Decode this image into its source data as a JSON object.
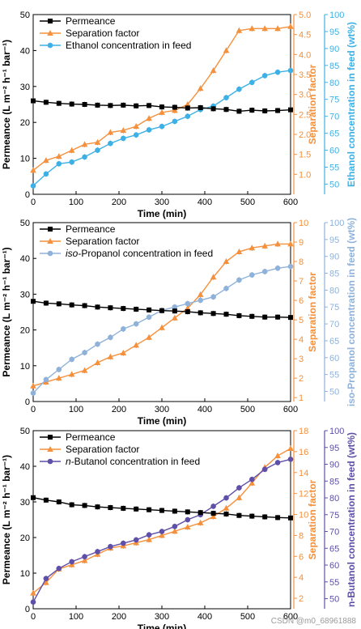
{
  "colors": {
    "permeance": "#000000",
    "separation": "#f5903c",
    "ethanol": "#3db1e6",
    "isopropanol": "#8fb2da",
    "butanol": "#5f4fa8"
  },
  "watermark": "CSDN @m0_68961888",
  "chart_data": [
    {
      "type": "line",
      "xlabel": "Time (min)",
      "xticks": [
        "0",
        "100",
        "200",
        "300",
        "400",
        "500",
        "600"
      ],
      "xlim": [
        0,
        600
      ],
      "y_left": {
        "label": "Permeance (L m⁻² h⁻¹ bar⁻¹)",
        "ylim": [
          0,
          50
        ],
        "ticks": [
          "0",
          "10",
          "20",
          "30",
          "40",
          "50"
        ]
      },
      "y_mid": {
        "label": "Separation factor",
        "ylim": [
          0.5,
          5.0
        ],
        "ticks": [
          "1.0",
          "1.5",
          "2.0",
          "2.5",
          "3.0",
          "3.5",
          "4.0",
          "4.5",
          "5.0"
        ]
      },
      "y_right": {
        "label": "Ethanol concentration in feed (wt%)",
        "ylim": [
          47,
          100
        ],
        "ticks": [
          "50",
          "55",
          "60",
          "65",
          "70",
          "75",
          "80",
          "85",
          "90",
          "95",
          "100"
        ]
      },
      "legend_position": "top-left",
      "series": [
        {
          "name": "Permeance",
          "axis": "left",
          "marker": "square",
          "color_key": "permeance",
          "x": [
            0,
            30,
            60,
            90,
            120,
            150,
            180,
            210,
            240,
            270,
            300,
            330,
            360,
            390,
            420,
            450,
            480,
            510,
            540,
            570,
            600
          ],
          "y": [
            26.0,
            25.6,
            25.3,
            25.1,
            25.0,
            24.8,
            24.7,
            24.8,
            24.6,
            24.7,
            24.3,
            24.2,
            24.0,
            24.1,
            23.8,
            23.6,
            23.1,
            23.4,
            23.2,
            23.3,
            23.5
          ]
        },
        {
          "name": "Separation factor",
          "axis": "mid",
          "marker": "triangle",
          "color_key": "separation",
          "x": [
            0,
            30,
            60,
            90,
            120,
            150,
            180,
            210,
            240,
            270,
            300,
            330,
            360,
            390,
            420,
            450,
            480,
            510,
            540,
            570,
            600
          ],
          "y": [
            1.1,
            1.35,
            1.45,
            1.6,
            1.75,
            1.8,
            2.05,
            2.1,
            2.2,
            2.4,
            2.55,
            2.6,
            2.75,
            3.15,
            3.6,
            4.1,
            4.6,
            4.65,
            4.65,
            4.65,
            4.7
          ]
        },
        {
          "name": "Ethanol concentration in feed",
          "axis": "right",
          "marker": "circle",
          "color_key": "ethanol",
          "x": [
            0,
            30,
            60,
            90,
            120,
            150,
            180,
            210,
            240,
            270,
            300,
            330,
            360,
            390,
            420,
            450,
            480,
            510,
            540,
            570,
            600
          ],
          "y": [
            49.5,
            53,
            56,
            56.5,
            58,
            60,
            62,
            63.5,
            64.5,
            66,
            67,
            68.5,
            70,
            72,
            73,
            75.5,
            78,
            80,
            82,
            83,
            83.5
          ]
        }
      ]
    },
    {
      "type": "line",
      "xlabel": "Time (min)",
      "xticks": [
        "0",
        "100",
        "200",
        "300",
        "400",
        "500",
        "600"
      ],
      "xlim": [
        0,
        600
      ],
      "y_left": {
        "label": "Permeance (L m⁻² h⁻¹ bar⁻¹)",
        "ylim": [
          0,
          50
        ],
        "ticks": [
          "0",
          "10",
          "20",
          "30",
          "40",
          "50"
        ]
      },
      "y_mid": {
        "label": "Separation factor",
        "ylim": [
          0.8,
          10
        ],
        "ticks": [
          "1",
          "2",
          "3",
          "4",
          "5",
          "6",
          "7",
          "8",
          "9",
          "10"
        ]
      },
      "y_right": {
        "label": "iso-Propanol concentration in feed (wt%)",
        "ylim": [
          47,
          100
        ],
        "ticks": [
          "50",
          "55",
          "60",
          "65",
          "70",
          "75",
          "80",
          "85",
          "90",
          "95",
          "100"
        ]
      },
      "legend_position": "top-left",
      "series": [
        {
          "name": "Permeance",
          "axis": "left",
          "marker": "square",
          "color_key": "permeance",
          "x": [
            0,
            30,
            60,
            90,
            120,
            150,
            180,
            210,
            240,
            270,
            300,
            330,
            360,
            390,
            420,
            450,
            480,
            510,
            540,
            570,
            600
          ],
          "y": [
            28.0,
            27.5,
            27.3,
            27.0,
            26.8,
            26.4,
            26.2,
            26.0,
            25.8,
            25.6,
            25.4,
            25.3,
            25.1,
            24.8,
            24.6,
            24.4,
            24.0,
            23.8,
            23.6,
            23.6,
            23.5
          ]
        },
        {
          "name": "Separation factor",
          "axis": "mid",
          "marker": "triangle",
          "color_key": "separation",
          "x": [
            0,
            30,
            60,
            90,
            120,
            150,
            180,
            210,
            240,
            270,
            300,
            330,
            360,
            390,
            420,
            450,
            480,
            510,
            540,
            570,
            600
          ],
          "y": [
            1.6,
            1.8,
            2.0,
            2.2,
            2.4,
            2.8,
            3.1,
            3.3,
            3.7,
            4.1,
            4.6,
            5.1,
            5.6,
            6.3,
            7.2,
            8.0,
            8.5,
            8.7,
            8.8,
            8.9,
            8.9
          ]
        },
        {
          "name": "iso-Propanol concentration in feed",
          "name_prefix_italic": "iso",
          "name_rest": "-Propanol concentration in feed",
          "axis": "right",
          "marker": "circle",
          "color_key": "isopropanol",
          "x": [
            0,
            30,
            60,
            90,
            120,
            150,
            180,
            210,
            240,
            270,
            300,
            330,
            360,
            390,
            420,
            450,
            480,
            510,
            540,
            570,
            600
          ],
          "y": [
            49.5,
            53.5,
            56.5,
            59.5,
            61.5,
            64,
            66,
            68.5,
            70,
            72,
            74,
            75,
            76,
            77,
            78,
            80.5,
            83,
            84.5,
            85.5,
            86.5,
            87
          ]
        }
      ]
    },
    {
      "type": "line",
      "xlabel": "Time (min)",
      "xticks": [
        "0",
        "100",
        "200",
        "300",
        "400",
        "500",
        "600"
      ],
      "xlim": [
        0,
        600
      ],
      "y_left": {
        "label": "Permeance (L m⁻² h⁻¹ bar⁻¹)",
        "ylim": [
          0,
          50
        ],
        "ticks": [
          "0",
          "10",
          "20",
          "30",
          "40",
          "50"
        ]
      },
      "y_mid": {
        "label": "Separation factor",
        "ylim": [
          1,
          18
        ],
        "ticks": [
          "2",
          "4",
          "6",
          "8",
          "10",
          "12",
          "14",
          "16",
          "18"
        ]
      },
      "y_right": {
        "label": "n-Butanol concentration in feed (wt%)",
        "ylim": [
          47,
          100
        ],
        "ticks": [
          "50",
          "55",
          "60",
          "65",
          "70",
          "75",
          "80",
          "85",
          "90",
          "95",
          "100"
        ]
      },
      "legend_position": "top-left",
      "series": [
        {
          "name": "Permeance",
          "axis": "left",
          "marker": "square",
          "color_key": "permeance",
          "x": [
            0,
            30,
            60,
            90,
            120,
            150,
            180,
            210,
            240,
            270,
            300,
            330,
            360,
            390,
            420,
            450,
            480,
            510,
            540,
            570,
            600
          ],
          "y": [
            31.2,
            30.5,
            30.0,
            29.2,
            29.0,
            28.6,
            28.4,
            28.2,
            28.0,
            27.8,
            27.6,
            27.4,
            27.2,
            27.0,
            26.8,
            26.6,
            26.2,
            26.0,
            25.8,
            25.6,
            25.5
          ]
        },
        {
          "name": "Separation factor",
          "axis": "mid",
          "marker": "triangle",
          "color_key": "separation",
          "x": [
            0,
            30,
            60,
            90,
            120,
            150,
            180,
            210,
            240,
            270,
            300,
            330,
            360,
            390,
            420,
            450,
            480,
            510,
            540,
            570,
            600
          ],
          "y": [
            2.5,
            3.5,
            4.8,
            5.2,
            5.6,
            6.2,
            6.8,
            7.0,
            7.3,
            7.6,
            8.0,
            8.4,
            8.8,
            9.2,
            9.8,
            10.6,
            11.6,
            13.0,
            14.5,
            15.6,
            16.3
          ]
        },
        {
          "name": "n-Butanol concentration in feed",
          "name_prefix_italic": "n",
          "name_rest": "-Butanol concentration in feed",
          "axis": "right",
          "marker": "circle",
          "color_key": "butanol",
          "x": [
            0,
            30,
            60,
            90,
            120,
            150,
            180,
            210,
            240,
            270,
            300,
            330,
            360,
            390,
            420,
            450,
            480,
            510,
            540,
            570,
            600
          ],
          "y": [
            49,
            56,
            59,
            61,
            62.5,
            64,
            65.5,
            66.5,
            67.5,
            69,
            70,
            71.5,
            73.5,
            75,
            77.5,
            80,
            83,
            85.5,
            88.5,
            90.5,
            91.5
          ]
        }
      ]
    }
  ]
}
